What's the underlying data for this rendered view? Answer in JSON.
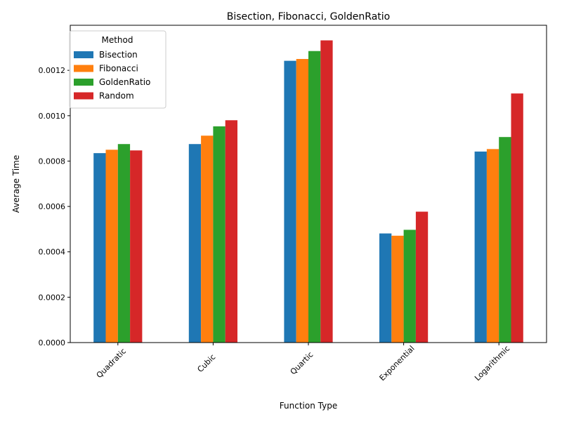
{
  "chart_data": {
    "type": "bar",
    "title": "Bisection, Fibonacci, GoldenRatio",
    "xlabel": "Function Type",
    "ylabel": "Average Time",
    "categories": [
      "Quadratic",
      "Cubic",
      "Quartic",
      "Exponential",
      "Logarithmic"
    ],
    "series": [
      {
        "name": "Bisection",
        "color": "#1f77b4",
        "values": [
          0.000835,
          0.000875,
          0.001242,
          0.000481,
          0.000842
        ]
      },
      {
        "name": "Fibonacci",
        "color": "#ff7f0e",
        "values": [
          0.00085,
          0.000912,
          0.00125,
          0.000471,
          0.000853
        ]
      },
      {
        "name": "GoldenRatio",
        "color": "#2ca02c",
        "values": [
          0.000875,
          0.000953,
          0.001285,
          0.000497,
          0.000906
        ]
      },
      {
        "name": "Random",
        "color": "#d62728",
        "values": [
          0.000847,
          0.00098,
          0.001332,
          0.000577,
          0.001098
        ]
      }
    ],
    "yticks": [
      "0.0000",
      "0.0002",
      "0.0004",
      "0.0006",
      "0.0008",
      "0.0010",
      "0.0012"
    ],
    "ylim": [
      0,
      0.0013986
    ],
    "legend": {
      "title": "Method",
      "placement": "top-left"
    },
    "grid": false
  }
}
